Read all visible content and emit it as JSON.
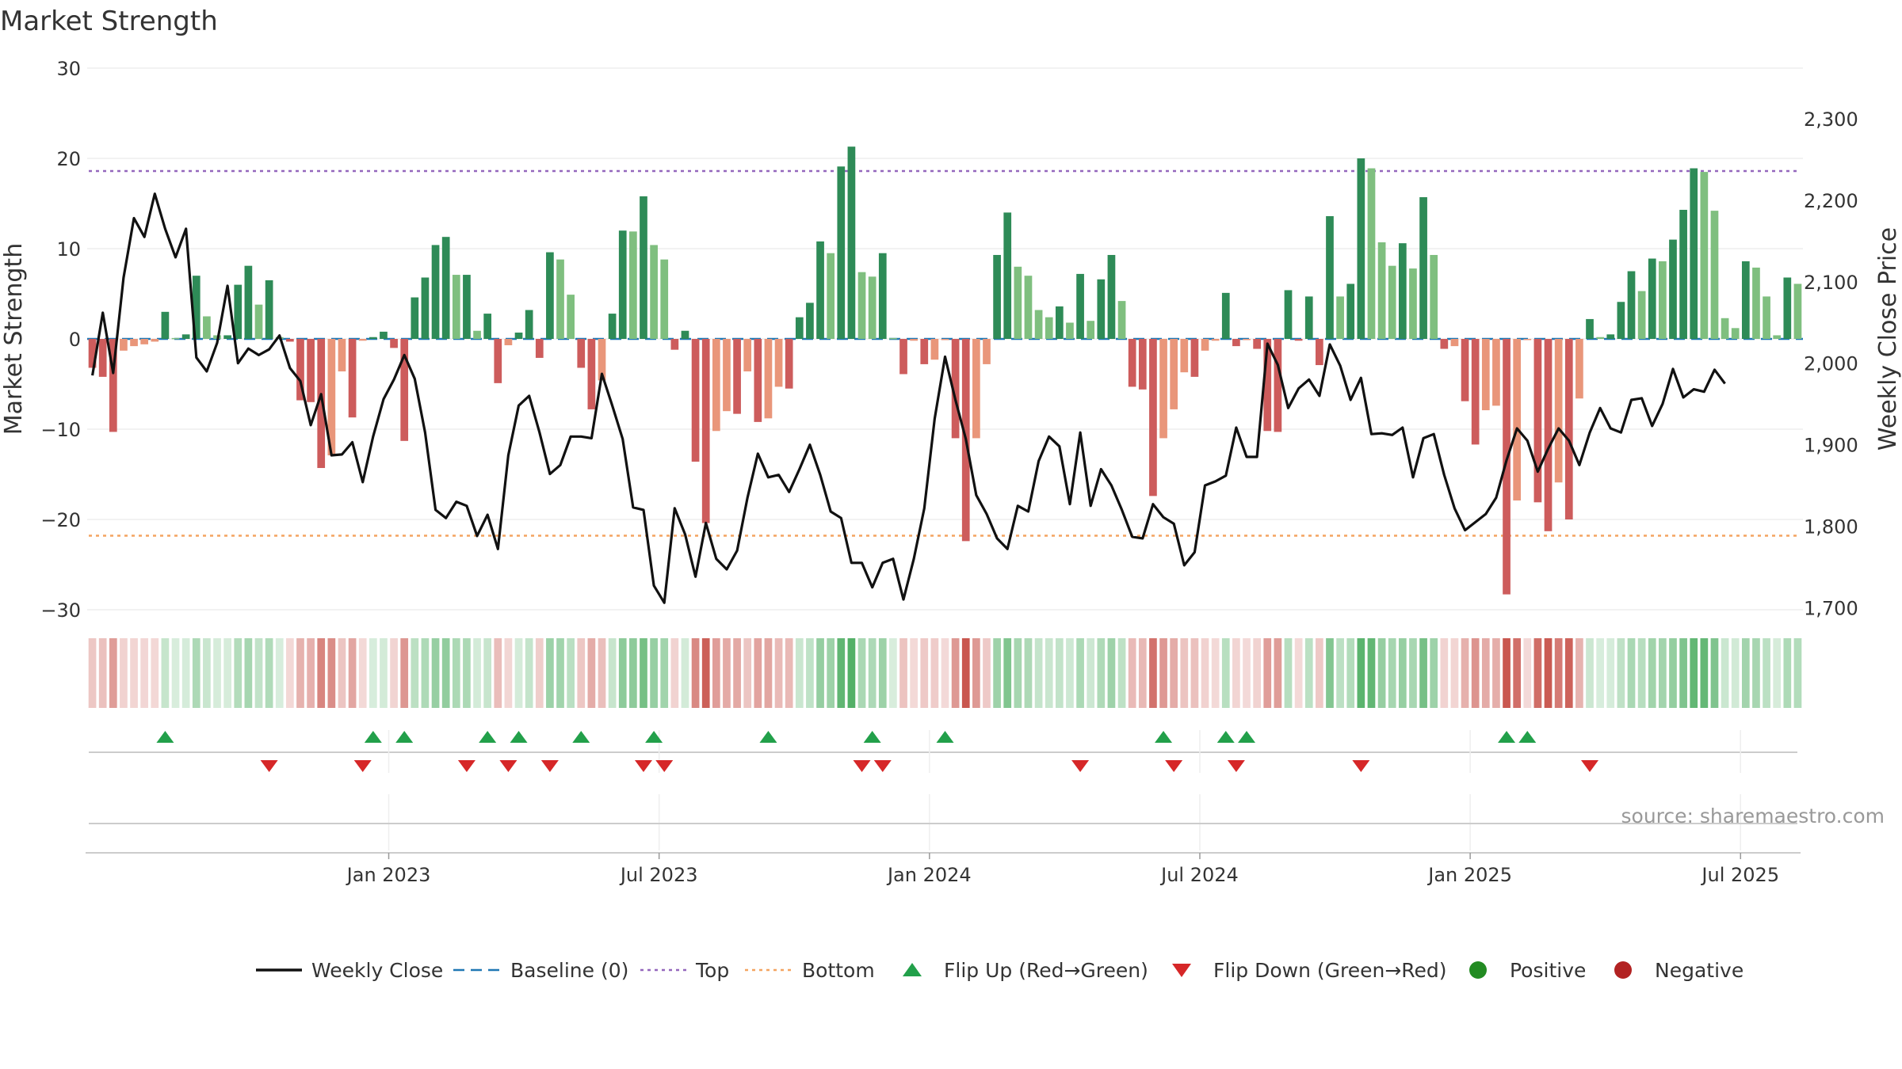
{
  "chart_data": {
    "type": "bar",
    "title": "Market Strength",
    "ylabel": "Market Strength",
    "y2label": "Weekly Close Price",
    "ylim": [
      -30,
      30
    ],
    "y2lim": [
      1700,
      2300
    ],
    "yticks": [
      30,
      20,
      10,
      0,
      -10,
      -20,
      -30
    ],
    "ytick_labels": [
      "30",
      "20",
      "10",
      "0",
      "−10",
      "−20",
      "−30"
    ],
    "y2ticks": [
      2300,
      2200,
      2100,
      2000,
      1900,
      1800,
      1700
    ],
    "y2tick_labels": [
      "2,300",
      "2,200",
      "2,100",
      "2,000",
      "1,900",
      "1,800",
      "1,700"
    ],
    "xticks": [
      29,
      55,
      81,
      107,
      133,
      159
    ],
    "xtick_labels": [
      "Jan 2023",
      "Jul 2023",
      "Jan 2024",
      "Jul 2024",
      "Jan 2025",
      "Jul 2025"
    ],
    "top_level": 18.6,
    "bottom_level": -21.8,
    "strength": [
      -3.2,
      -4.2,
      -10.3,
      -1.3,
      -0.8,
      -0.6,
      -0.3,
      3.0,
      0.1,
      0.5,
      7.0,
      2.5,
      0.4,
      0.4,
      6.0,
      8.1,
      3.8,
      6.5,
      0.2,
      -0.3,
      -6.8,
      -7.0,
      -14.3,
      -12.9,
      -3.6,
      -8.7,
      -0.2,
      0.2,
      0.8,
      -1.0,
      -11.3,
      4.6,
      6.8,
      10.4,
      11.3,
      7.1,
      7.1,
      0.9,
      2.8,
      -4.9,
      -0.7,
      0.7,
      3.2,
      -2.1,
      9.6,
      8.8,
      4.9,
      -3.2,
      -7.8,
      -4.6,
      2.8,
      12.0,
      11.9,
      15.8,
      10.4,
      8.8,
      -1.2,
      0.9,
      -13.6,
      -20.4,
      -10.2,
      -8.0,
      -8.3,
      -3.6,
      -9.2,
      -8.8,
      -5.3,
      -5.5,
      2.4,
      4.0,
      10.8,
      9.5,
      19.1,
      21.3,
      7.4,
      6.9,
      9.5,
      0.1,
      -3.9,
      -0.2,
      -2.8,
      -2.3,
      -0.1,
      -11.0,
      -22.4,
      -11.0,
      -2.8,
      9.3,
      14.0,
      8.0,
      7.0,
      3.2,
      2.4,
      3.6,
      1.8,
      7.2,
      2.0,
      6.6,
      9.3,
      4.2,
      -5.3,
      -5.6,
      -17.4,
      -11.0,
      -7.8,
      -3.7,
      -4.2,
      -1.3,
      -0.2,
      5.1,
      -0.8,
      -0.1,
      -1.1,
      -10.2,
      -10.3,
      5.4,
      -0.2,
      4.7,
      -2.9,
      13.6,
      4.7,
      6.1,
      20.0,
      18.9,
      10.7,
      8.1,
      10.6,
      7.8,
      15.7,
      9.3,
      -1.1,
      -0.8,
      -6.9,
      -11.7,
      -7.9,
      -7.4,
      -28.3,
      -17.9,
      -0.1,
      -18.1,
      -21.3,
      -15.9,
      -20.0,
      -6.6,
      2.2,
      0.2,
      0.5,
      4.1,
      7.5,
      5.3,
      8.9,
      8.6,
      11.0,
      14.3,
      18.9,
      18.5,
      14.2,
      2.3,
      1.2,
      8.6,
      7.9,
      4.7,
      0.4,
      6.8,
      6.1
    ],
    "close": [
      1985,
      2062,
      1988,
      2105,
      2178,
      2155,
      2208,
      2165,
      2130,
      2165,
      2007,
      1990,
      2025,
      2095,
      2000,
      2018,
      2010,
      2017,
      2034,
      1994,
      1978,
      1924,
      1962,
      1887,
      1888,
      1903,
      1854,
      1910,
      1956,
      1980,
      2010,
      1981,
      1915,
      1820,
      1810,
      1830,
      1825,
      1788,
      1814,
      1772,
      1887,
      1948,
      1960,
      1915,
      1864,
      1875,
      1910,
      1910,
      1908,
      1987,
      1948,
      1907,
      1823,
      1820,
      1727,
      1706,
      1822,
      1790,
      1738,
      1804,
      1760,
      1747,
      1770,
      1835,
      1889,
      1860,
      1863,
      1842,
      1870,
      1900,
      1863,
      1818,
      1810,
      1755,
      1755,
      1725,
      1755,
      1760,
      1710,
      1760,
      1822,
      1932,
      2008,
      1955,
      1907,
      1838,
      1815,
      1785,
      1772,
      1825,
      1818,
      1880,
      1910,
      1898,
      1827,
      1915,
      1825,
      1870,
      1850,
      1820,
      1787,
      1785,
      1827,
      1811,
      1803,
      1752,
      1768,
      1850,
      1855,
      1862,
      1921,
      1885,
      1885,
      2024,
      1998,
      1945,
      1969,
      1980,
      1960,
      2023,
      1997,
      1955,
      1982,
      1913,
      1914,
      1912,
      1921,
      1860,
      1908,
      1913,
      1863,
      1822,
      1795,
      1805,
      1815,
      1835,
      1881,
      1920,
      1905,
      1867,
      1895,
      1920,
      1905,
      1875,
      1915,
      1945,
      1920,
      1915,
      1955,
      1957,
      1923,
      1950,
      1993,
      1958,
      1968,
      1965,
      1992,
      1975
    ],
    "flips_up": [
      7,
      27,
      30,
      38,
      41,
      47,
      54,
      65,
      75,
      82,
      103,
      109,
      111,
      136,
      138
    ],
    "flips_down": [
      17,
      26,
      36,
      40,
      44,
      53,
      55,
      74,
      76,
      95,
      104,
      110,
      122,
      144
    ],
    "legend": [
      "Weekly Close",
      "Baseline (0)",
      "Top",
      "Bottom",
      "Flip Up (Red→Green)",
      "Flip Down (Green→Red)",
      "Positive",
      "Negative"
    ],
    "source": "source: sharemaestro.com"
  },
  "colors": {
    "pos_strong": "#2e8b57",
    "pos_light": "#7fbf7f",
    "neg_strong": "#cd5c5c",
    "neg_light": "#e9967a",
    "price_line": "#111111",
    "baseline": "#1f77b4",
    "top_line": "#9467bd",
    "bottom_line": "#f4a460",
    "flip_up": "#22a04a",
    "flip_down": "#d62728",
    "positive_dot": "#228b22",
    "negative_dot": "#b22222",
    "grid": "#eeeeee"
  }
}
